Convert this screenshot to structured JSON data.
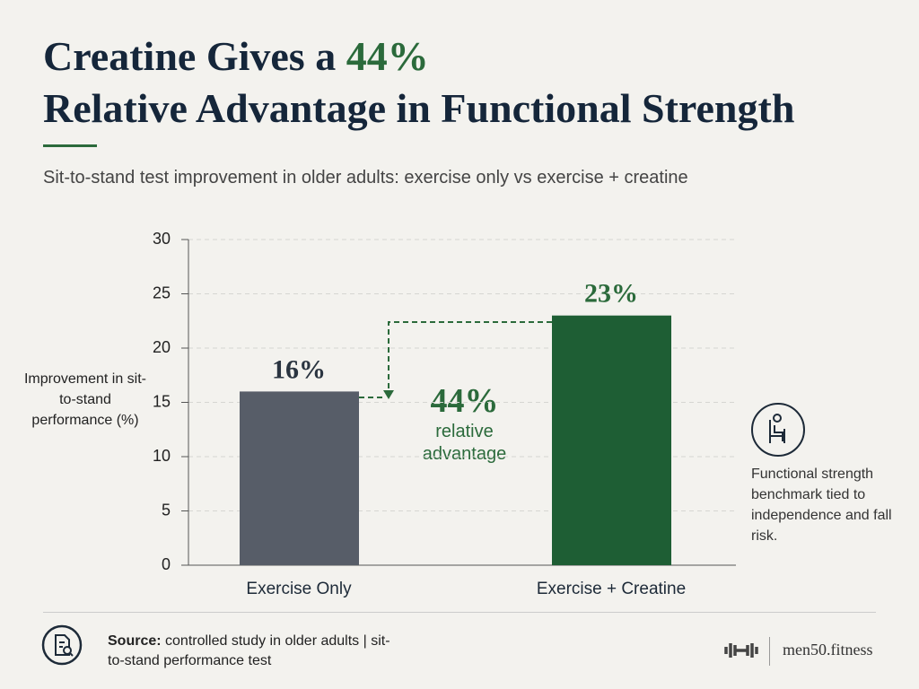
{
  "header": {
    "title_start": "Creatine Gives a",
    "title_highlight": "44%",
    "title_line2": "Relative Advantage in Functional Strength",
    "subtitle": "Sit-to-stand test improvement in older adults: exercise only vs exercise + creatine"
  },
  "chart_data": {
    "type": "bar",
    "y_label": "Improvement in sit-to-stand performance (%)",
    "categories": [
      "Exercise Only",
      "Exercise + Creatine"
    ],
    "values": [
      16,
      23
    ],
    "value_labels": [
      "16%",
      "23%"
    ],
    "colors": [
      "#575d68",
      "#1e5e34"
    ],
    "ylim": [
      0,
      30
    ],
    "yticks": [
      0,
      5,
      10,
      15,
      20,
      25,
      30
    ],
    "grid": true,
    "annotation": {
      "value": "44%",
      "text": "relative advantage"
    }
  },
  "side_note": "Functional strength benchmark tied to independence and fall risk.",
  "footer": {
    "source_label": "Source:",
    "source_text": "controlled study in older adults | sit-to-stand performance test",
    "brand": "men50.fitness"
  }
}
